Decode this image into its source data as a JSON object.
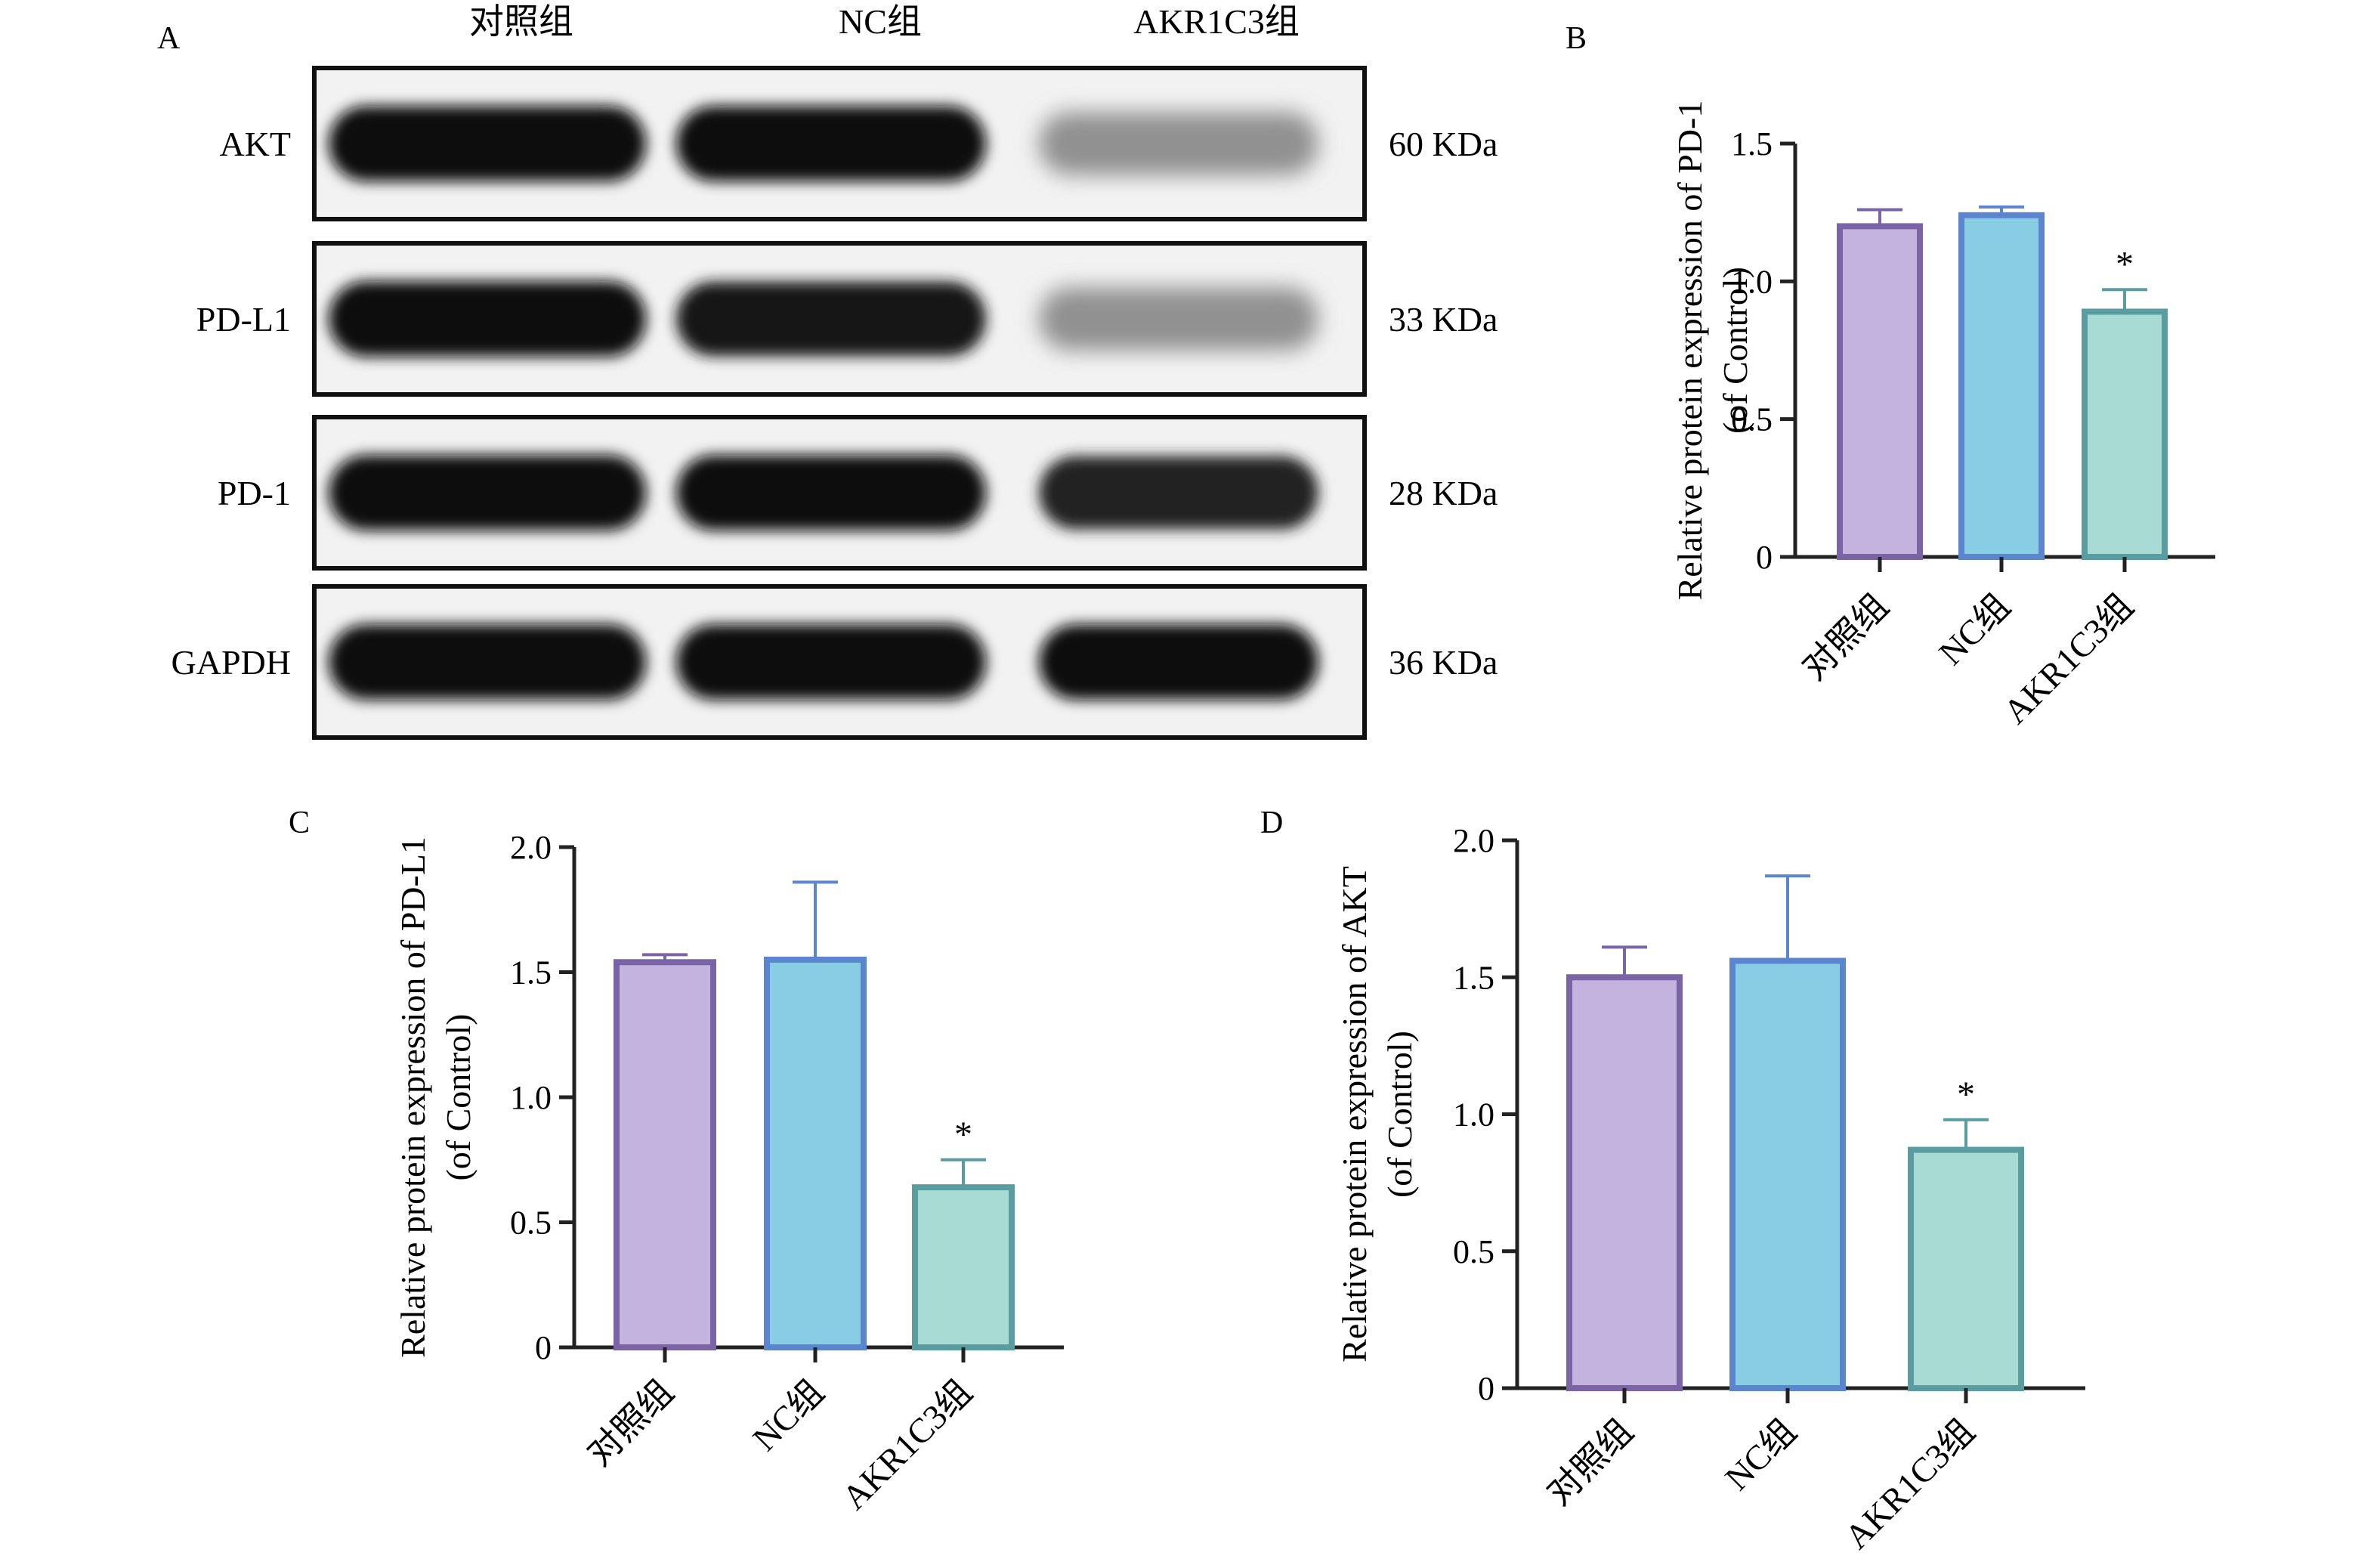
{
  "panels": {
    "A": {
      "letter": "A",
      "lanes": [
        "对照组",
        "NC组",
        "AKR1C3组"
      ],
      "rows": [
        {
          "protein": "AKT",
          "kda": "60 KDa",
          "band_intensity": [
            1.0,
            1.0,
            0.45
          ]
        },
        {
          "protein": "PD-L1",
          "kda": "33 KDa",
          "band_intensity": [
            1.0,
            0.95,
            0.45
          ]
        },
        {
          "protein": "PD-1",
          "kda": "28 KDa",
          "band_intensity": [
            1.0,
            1.0,
            0.9
          ]
        },
        {
          "protein": "GAPDH",
          "kda": "36 KDa",
          "band_intensity": [
            1.0,
            1.0,
            1.0
          ]
        }
      ]
    },
    "B": {
      "letter": "B"
    },
    "C": {
      "letter": "C"
    },
    "D": {
      "letter": "D"
    }
  },
  "colors": {
    "control_fill": "#c5b3df",
    "control_edge": "#7a64a6",
    "nc_fill": "#88cde3",
    "nc_edge": "#5b86cf",
    "akr_fill": "#a8dbd4",
    "akr_edge": "#5a9da0",
    "axis": "#222222"
  },
  "chart_data": [
    {
      "panel": "B",
      "type": "bar",
      "categories": [
        "对照组",
        "NC组",
        "AKR1C3组"
      ],
      "values": [
        1.2,
        1.24,
        0.89
      ],
      "errors": [
        0.06,
        0.03,
        0.08
      ],
      "significance": [
        "",
        "",
        "*"
      ],
      "ylabel": [
        "Relative protein expression of  PD-1",
        "(of Control)"
      ],
      "ylim": [
        0,
        1.5
      ],
      "yticks": [
        0,
        0.5,
        1.0,
        1.5
      ],
      "ytick_labels": [
        "0",
        "0.5",
        "1.0",
        "1.5"
      ]
    },
    {
      "panel": "C",
      "type": "bar",
      "categories": [
        "对照组",
        "NC组",
        "AKR1C3组"
      ],
      "values": [
        1.54,
        1.55,
        0.64
      ],
      "errors": [
        0.03,
        0.31,
        0.11
      ],
      "significance": [
        "",
        "",
        "*"
      ],
      "ylabel": [
        "Relative protein expression of  PD-L1",
        "(of Control)"
      ],
      "ylim": [
        0,
        2.0
      ],
      "yticks": [
        0,
        0.5,
        1.0,
        1.5,
        2.0
      ],
      "ytick_labels": [
        "0",
        "0.5",
        "1.0",
        "1.5",
        "2.0"
      ]
    },
    {
      "panel": "D",
      "type": "bar",
      "categories": [
        "对照组",
        "NC组",
        "AKR1C3组"
      ],
      "values": [
        1.5,
        1.56,
        0.87
      ],
      "errors": [
        0.11,
        0.31,
        0.11
      ],
      "significance": [
        "",
        "",
        "*"
      ],
      "ylabel": [
        "Relative protein expression of AKT",
        "(of Control)"
      ],
      "ylim": [
        0,
        2.0
      ],
      "yticks": [
        0,
        0.5,
        1.0,
        1.5,
        2.0
      ],
      "ytick_labels": [
        "0",
        "0.5",
        "1.0",
        "1.5",
        "2.0"
      ]
    }
  ]
}
